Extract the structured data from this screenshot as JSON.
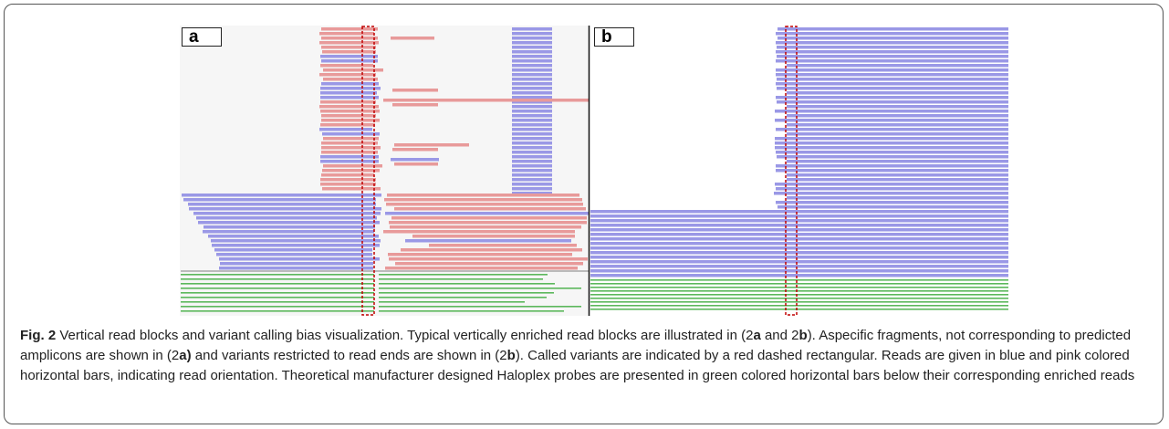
{
  "figure": {
    "panels": [
      {
        "label": "a"
      },
      {
        "label": "b"
      }
    ],
    "caption": [
      {
        "text": "Fig. 2",
        "bold": true
      },
      {
        "text": " Vertical read blocks and variant calling bias visualization. Typical vertically enriched read blocks are illustrated in (2"
      },
      {
        "text": "a",
        "bold": true
      },
      {
        "text": " and 2"
      },
      {
        "text": "b",
        "bold": true
      },
      {
        "text": "). Aspecific fragments, not corresponding to predicted amplicons are shown in (2"
      },
      {
        "text": "a)",
        "bold": true
      },
      {
        "text": " and variants restricted to read ends are shown in (2"
      },
      {
        "text": "b",
        "bold": true
      },
      {
        "text": "). Called variants are indicated by a red dashed rectangular. Reads are given in blue and pink colored horizontal bars, indicating read orientation. Theoretical manufacturer designed Haloplex probes are presented in green colored horizontal bars below their corresponding enriched reads"
      }
    ]
  }
}
